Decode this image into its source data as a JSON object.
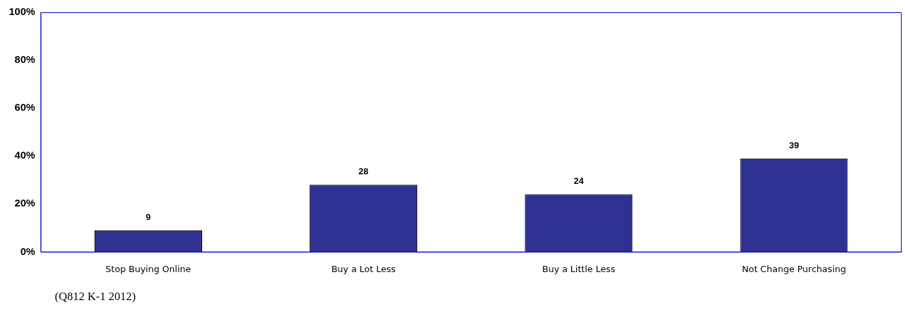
{
  "chart_data": {
    "type": "bar",
    "categories": [
      "Stop Buying Online",
      "Buy a Lot Less",
      "Buy a Little Less",
      "Not Change Purchasing"
    ],
    "values": [
      9,
      28,
      24,
      39
    ],
    "color": "#2e3192",
    "ylim": [
      0,
      100
    ],
    "yticks": [
      {
        "value": 0,
        "label": "0%"
      },
      {
        "value": 20,
        "label": "20%"
      },
      {
        "value": 40,
        "label": "40%"
      },
      {
        "value": 60,
        "label": "60%"
      },
      {
        "value": 80,
        "label": "80%"
      },
      {
        "value": 100,
        "label": "100%"
      }
    ],
    "data_labels": true,
    "grid": false,
    "legend": false,
    "annotations": [
      "(Q812 K-1 2012)"
    ]
  }
}
